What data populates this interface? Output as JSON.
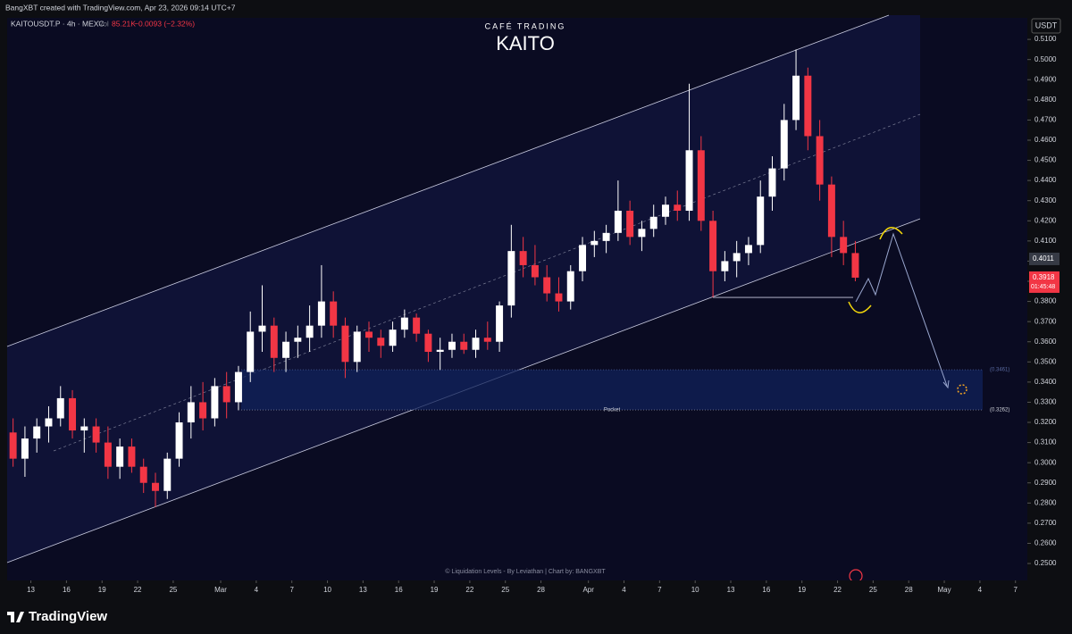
{
  "header": {
    "author": "BangXBT created with TradingView.com, Apr 23, 2026 09:14 UTC+7",
    "brand": "TradingView"
  },
  "chart_data": {
    "type": "candlestick",
    "title": "KAITO",
    "subtitle": "CAFÉ TRADING",
    "symbol": "KAITOUSDT.P · 4h · MEXC",
    "volume_label": "Vol",
    "volume": "85.21K",
    "change": "−0.0093 (−2.32%)",
    "currency": "USDT",
    "footer": "© Liquidation Levels - By Leviathan | Chart by: BANGXBT",
    "up_color": "#ffffff",
    "down_color": "#f23645",
    "x": [
      "2026-02-11",
      "2026-02-12",
      "2026-02-13",
      "2026-02-14",
      "2026-02-15",
      "2026-02-16",
      "2026-02-17",
      "2026-02-18",
      "2026-02-19",
      "2026-02-20",
      "2026-02-21",
      "2026-02-22",
      "2026-02-23",
      "2026-02-24",
      "2026-02-25",
      "2026-02-26",
      "2026-02-27",
      "2026-02-28",
      "2026-03-01",
      "2026-03-02",
      "2026-03-03",
      "2026-03-04",
      "2026-03-05",
      "2026-03-06",
      "2026-03-07",
      "2026-03-08",
      "2026-03-09",
      "2026-03-10",
      "2026-03-11",
      "2026-03-12",
      "2026-03-13",
      "2026-03-14",
      "2026-03-15",
      "2026-03-16",
      "2026-03-17",
      "2026-03-18",
      "2026-03-19",
      "2026-03-20",
      "2026-03-21",
      "2026-03-22",
      "2026-03-23",
      "2026-03-24",
      "2026-03-25",
      "2026-03-26",
      "2026-03-27",
      "2026-03-28",
      "2026-03-29",
      "2026-03-30",
      "2026-03-31",
      "2026-04-01",
      "2026-04-02",
      "2026-04-03",
      "2026-04-04",
      "2026-04-05",
      "2026-04-06",
      "2026-04-07",
      "2026-04-08",
      "2026-04-09",
      "2026-04-10",
      "2026-04-11",
      "2026-04-12",
      "2026-04-13",
      "2026-04-14",
      "2026-04-15",
      "2026-04-16",
      "2026-04-17",
      "2026-04-18",
      "2026-04-19",
      "2026-04-20",
      "2026-04-21",
      "2026-04-22",
      "2026-04-23"
    ],
    "open": [
      0.315,
      0.302,
      0.312,
      0.318,
      0.322,
      0.332,
      0.316,
      0.318,
      0.31,
      0.298,
      0.308,
      0.298,
      0.29,
      0.286,
      0.302,
      0.32,
      0.33,
      0.322,
      0.338,
      0.33,
      0.345,
      0.365,
      0.368,
      0.352,
      0.36,
      0.362,
      0.368,
      0.38,
      0.368,
      0.35,
      0.365,
      0.362,
      0.358,
      0.366,
      0.372,
      0.364,
      0.355,
      0.356,
      0.36,
      0.356,
      0.362,
      0.36,
      0.378,
      0.405,
      0.398,
      0.392,
      0.384,
      0.38,
      0.395,
      0.408,
      0.41,
      0.414,
      0.425,
      0.412,
      0.416,
      0.422,
      0.428,
      0.425,
      0.455,
      0.42,
      0.395,
      0.4,
      0.404,
      0.408,
      0.432,
      0.446,
      0.47,
      0.492,
      0.462,
      0.438,
      0.412,
      0.404
    ],
    "high": [
      0.322,
      0.318,
      0.322,
      0.328,
      0.338,
      0.336,
      0.322,
      0.322,
      0.318,
      0.312,
      0.312,
      0.302,
      0.295,
      0.305,
      0.325,
      0.338,
      0.34,
      0.342,
      0.345,
      0.348,
      0.375,
      0.388,
      0.372,
      0.365,
      0.368,
      0.378,
      0.398,
      0.385,
      0.372,
      0.368,
      0.37,
      0.366,
      0.37,
      0.376,
      0.374,
      0.366,
      0.362,
      0.364,
      0.364,
      0.366,
      0.37,
      0.38,
      0.418,
      0.412,
      0.408,
      0.398,
      0.392,
      0.398,
      0.412,
      0.415,
      0.418,
      0.44,
      0.43,
      0.42,
      0.428,
      0.432,
      0.435,
      0.488,
      0.462,
      0.425,
      0.405,
      0.41,
      0.412,
      0.44,
      0.452,
      0.478,
      0.505,
      0.496,
      0.47,
      0.442,
      0.42,
      0.41
    ],
    "low": [
      0.298,
      0.293,
      0.305,
      0.31,
      0.318,
      0.312,
      0.305,
      0.305,
      0.292,
      0.292,
      0.295,
      0.285,
      0.278,
      0.282,
      0.298,
      0.312,
      0.316,
      0.318,
      0.322,
      0.326,
      0.34,
      0.355,
      0.345,
      0.345,
      0.352,
      0.355,
      0.362,
      0.362,
      0.342,
      0.345,
      0.355,
      0.352,
      0.355,
      0.362,
      0.36,
      0.35,
      0.346,
      0.352,
      0.354,
      0.352,
      0.356,
      0.355,
      0.372,
      0.392,
      0.388,
      0.38,
      0.375,
      0.376,
      0.39,
      0.402,
      0.404,
      0.41,
      0.408,
      0.405,
      0.412,
      0.418,
      0.42,
      0.42,
      0.415,
      0.382,
      0.39,
      0.392,
      0.398,
      0.404,
      0.425,
      0.44,
      0.465,
      0.455,
      0.43,
      0.402,
      0.398,
      0.39
    ],
    "close": [
      0.302,
      0.312,
      0.318,
      0.322,
      0.332,
      0.316,
      0.318,
      0.31,
      0.298,
      0.308,
      0.298,
      0.29,
      0.286,
      0.302,
      0.32,
      0.33,
      0.322,
      0.338,
      0.33,
      0.345,
      0.365,
      0.368,
      0.352,
      0.36,
      0.362,
      0.368,
      0.38,
      0.368,
      0.35,
      0.365,
      0.362,
      0.358,
      0.366,
      0.372,
      0.364,
      0.355,
      0.356,
      0.36,
      0.356,
      0.362,
      0.36,
      0.378,
      0.405,
      0.398,
      0.392,
      0.384,
      0.38,
      0.395,
      0.408,
      0.41,
      0.414,
      0.425,
      0.412,
      0.416,
      0.422,
      0.428,
      0.425,
      0.455,
      0.42,
      0.395,
      0.4,
      0.404,
      0.408,
      0.432,
      0.446,
      0.47,
      0.492,
      0.462,
      0.438,
      0.412,
      0.404,
      0.3918
    ],
    "xlim": [
      "2026-02-11",
      "2026-05-08"
    ],
    "xticks": [
      {
        "value": "2026-02-13",
        "label": "13"
      },
      {
        "value": "2026-02-16",
        "label": "16"
      },
      {
        "value": "2026-02-19",
        "label": "19"
      },
      {
        "value": "2026-02-22",
        "label": "22"
      },
      {
        "value": "2026-02-25",
        "label": "25"
      },
      {
        "value": "2026-03-01",
        "label": "Mar"
      },
      {
        "value": "2026-03-04",
        "label": "4"
      },
      {
        "value": "2026-03-07",
        "label": "7"
      },
      {
        "value": "2026-03-10",
        "label": "10"
      },
      {
        "value": "2026-03-13",
        "label": "13"
      },
      {
        "value": "2026-03-16",
        "label": "16"
      },
      {
        "value": "2026-03-19",
        "label": "19"
      },
      {
        "value": "2026-03-22",
        "label": "22"
      },
      {
        "value": "2026-03-25",
        "label": "25"
      },
      {
        "value": "2026-03-28",
        "label": "28"
      },
      {
        "value": "2026-04-01",
        "label": "Apr"
      },
      {
        "value": "2026-04-04",
        "label": "4"
      },
      {
        "value": "2026-04-07",
        "label": "7"
      },
      {
        "value": "2026-04-10",
        "label": "10"
      },
      {
        "value": "2026-04-13",
        "label": "13"
      },
      {
        "value": "2026-04-16",
        "label": "16"
      },
      {
        "value": "2026-04-19",
        "label": "19"
      },
      {
        "value": "2026-04-22",
        "label": "22"
      },
      {
        "value": "2026-04-25",
        "label": "25"
      },
      {
        "value": "2026-04-28",
        "label": "28"
      },
      {
        "value": "2026-05-01",
        "label": "May"
      },
      {
        "value": "2026-05-04",
        "label": "4"
      },
      {
        "value": "2026-05-07",
        "label": "7"
      }
    ],
    "ylim": [
      0.2416,
      0.526
    ],
    "yticks": [
      {
        "value": 0.25,
        "label": "0.2500"
      },
      {
        "value": 0.26,
        "label": "0.2600"
      },
      {
        "value": 0.27,
        "label": "0.2700"
      },
      {
        "value": 0.28,
        "label": "0.2800"
      },
      {
        "value": 0.29,
        "label": "0.2900"
      },
      {
        "value": 0.3,
        "label": "0.3000"
      },
      {
        "value": 0.31,
        "label": "0.3100"
      },
      {
        "value": 0.32,
        "label": "0.3200"
      },
      {
        "value": 0.33,
        "label": "0.3300"
      },
      {
        "value": 0.34,
        "label": "0.3400"
      },
      {
        "value": 0.35,
        "label": "0.3500"
      },
      {
        "value": 0.36,
        "label": "0.3600"
      },
      {
        "value": 0.37,
        "label": "0.3700"
      },
      {
        "value": 0.38,
        "label": "0.3800"
      },
      {
        "value": 0.39,
        "label": "0.3900"
      },
      {
        "value": 0.4,
        "label": "0.4000"
      },
      {
        "value": 0.41,
        "label": "0.4100"
      },
      {
        "value": 0.42,
        "label": "0.4200"
      },
      {
        "value": 0.43,
        "label": "0.4300"
      },
      {
        "value": 0.44,
        "label": "0.4400"
      },
      {
        "value": 0.45,
        "label": "0.4500"
      },
      {
        "value": 0.46,
        "label": "0.4600"
      },
      {
        "value": 0.47,
        "label": "0.4700"
      },
      {
        "value": 0.48,
        "label": "0.4800"
      },
      {
        "value": 0.49,
        "label": "0.4900"
      },
      {
        "value": 0.5,
        "label": "0.5000"
      },
      {
        "value": 0.51,
        "label": "0.5100"
      }
    ],
    "marked_price": {
      "value": 0.4011,
      "label": "0.4011"
    },
    "last_price": {
      "value": 0.3918,
      "label": "0.3918",
      "countdown": "01:45:48"
    },
    "pocket": {
      "label": "Pocket",
      "top": 0.3461,
      "top_label": "(0.3461)",
      "bottom": 0.3262,
      "bottom_label": "(0.3262)"
    }
  }
}
